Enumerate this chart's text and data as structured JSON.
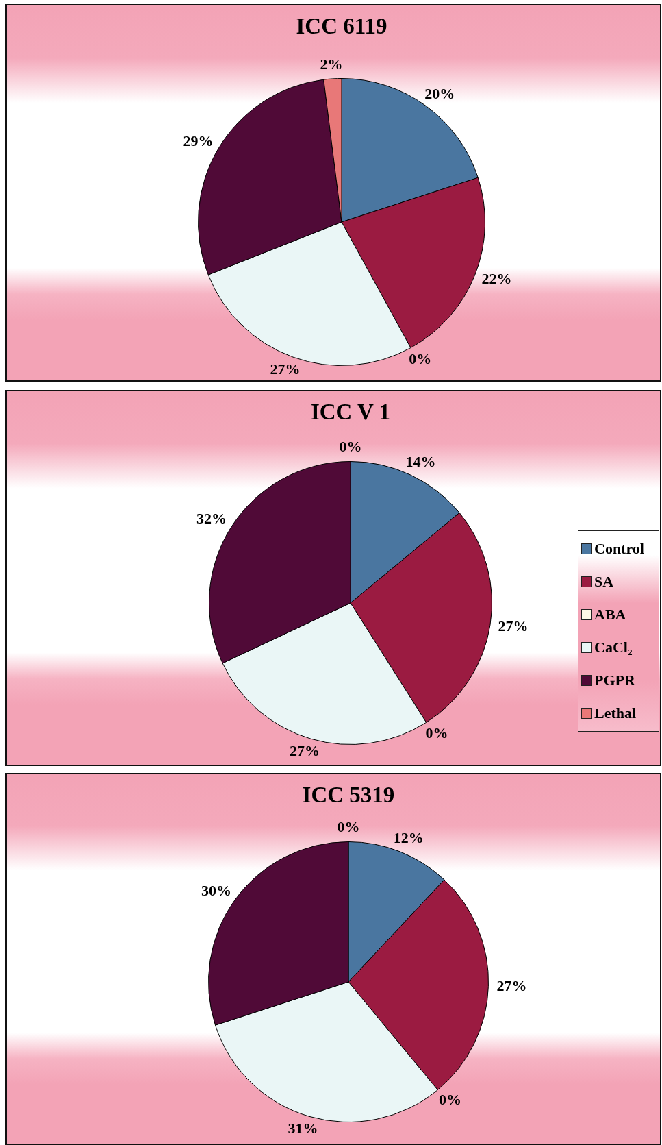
{
  "chart_data": [
    {
      "type": "pie",
      "title": "ICC 6119",
      "categories": [
        null,
        null,
        null,
        null,
        null,
        null
      ],
      "values": [
        20,
        22,
        0,
        27,
        29,
        2
      ],
      "colors": [
        "#4a76a0",
        "#9b1b41",
        "#fff9e6",
        "#eaf6f6",
        "#500a37",
        "#e87878"
      ],
      "value_labels": [
        "20%",
        "22%",
        "0%",
        "27%",
        "29%",
        "2%"
      ]
    },
    {
      "type": "pie",
      "title": "ICC V 1",
      "categories": [
        "Control",
        "SA",
        "ABA",
        "CaCl₂",
        "PGPR",
        "Lethal"
      ],
      "values": [
        14,
        27,
        0,
        27,
        32,
        0
      ],
      "colors": [
        "#4a76a0",
        "#9b1b41",
        "#fff9e6",
        "#eaf6f6",
        "#500a37",
        "#e87878"
      ],
      "value_labels": [
        "14%",
        "27%",
        "0%",
        "27%",
        "32%",
        "0%"
      ],
      "legend": "right"
    },
    {
      "type": "pie",
      "title": "ICC 5319",
      "categories": [
        null,
        null,
        null,
        null,
        null,
        null
      ],
      "values": [
        12,
        27,
        0,
        31,
        30,
        0
      ],
      "colors": [
        "#4a76a0",
        "#9b1b41",
        "#fff9e6",
        "#eaf6f6",
        "#500a37",
        "#e87878"
      ],
      "value_labels": [
        "12%",
        "27%",
        "0%",
        "31%",
        "30%",
        "0%"
      ]
    }
  ]
}
